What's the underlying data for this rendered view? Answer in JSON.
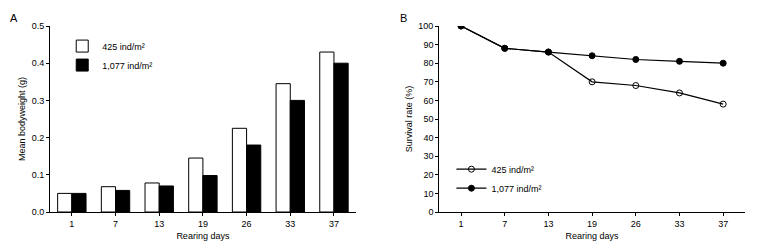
{
  "chart_data": [
    {
      "type": "bar",
      "title": "A",
      "x_label": "Rearing days",
      "y_label": "Mean bodyweight (g)",
      "categories": [
        "1",
        "7",
        "13",
        "19",
        "26",
        "33",
        "37"
      ],
      "series": [
        {
          "name": "425 ind/m²",
          "color": "#ffffff",
          "values": [
            0.05,
            0.068,
            0.078,
            0.145,
            0.225,
            0.345,
            0.43
          ]
        },
        {
          "name": "1,077 ind/m²",
          "color": "#000000",
          "values": [
            0.05,
            0.058,
            0.07,
            0.098,
            0.18,
            0.3,
            0.4
          ]
        }
      ],
      "ylim": [
        0,
        0.5
      ],
      "yticks": [
        {
          "value": 0,
          "label": "0.0"
        },
        0.1,
        0.2,
        0.3,
        0.4,
        0.5
      ],
      "grid": false,
      "legend": "upper left"
    },
    {
      "type": "line",
      "title": "B",
      "x_label": "Rearing days",
      "y_label": "Survival rate (%)",
      "categories": [
        "1",
        "7",
        "13",
        "19",
        "26",
        "33",
        "37"
      ],
      "series": [
        {
          "name": "425 ind/m²",
          "color": "#000000",
          "marker": "circle-open",
          "values": [
            100,
            88,
            86,
            70,
            68,
            64,
            58
          ]
        },
        {
          "name": "1,077 ind/m²",
          "color": "#000000",
          "marker": "circle",
          "values": [
            100,
            88,
            86,
            84,
            82,
            81,
            80
          ]
        }
      ],
      "ylim": [
        0,
        100
      ],
      "yticks": [
        0,
        10,
        20,
        30,
        40,
        50,
        60,
        70,
        80,
        90,
        100
      ],
      "grid": false,
      "legend": "lower left"
    }
  ]
}
